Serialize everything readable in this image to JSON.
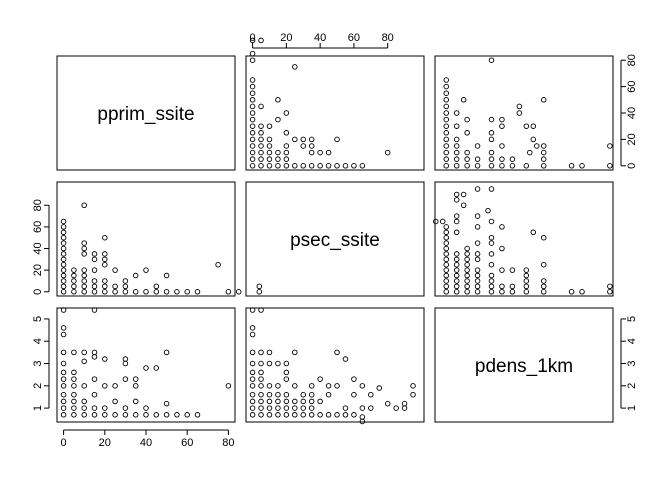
{
  "chart_data": {
    "type": "scatter",
    "variables": [
      "pprim_ssite",
      "psec_ssite",
      "pdens_1km"
    ],
    "tick_labels": {
      "pprim_ssite": [
        "0",
        "20",
        "40",
        "60",
        "80"
      ],
      "psec_ssite": [
        "0",
        "20",
        "40",
        "60",
        "80"
      ],
      "pdens_1km": [
        "1",
        "2",
        "3",
        "4",
        "5"
      ]
    },
    "axis_ranges": {
      "pprim_ssite": [
        -3.2,
        83.2
      ],
      "psec_ssite": [
        -3.9,
        101.5
      ],
      "pdens_1km": [
        0.377,
        5.49
      ]
    },
    "outer_axes": {
      "top": [
        "psec_ssite"
      ],
      "right": [
        "pprim_ssite",
        "pdens_1km"
      ],
      "bottom": [
        "pprim_ssite"
      ],
      "left": [
        "psec_ssite",
        "pdens_1km"
      ]
    },
    "grid": false,
    "legend": "none",
    "points": {
      "pprim_psec": [
        [
          0,
          0
        ],
        [
          0,
          5
        ],
        [
          0,
          10
        ],
        [
          0,
          15
        ],
        [
          0,
          20
        ],
        [
          0,
          25
        ],
        [
          0,
          30
        ],
        [
          0,
          35
        ],
        [
          0,
          40
        ],
        [
          0,
          45
        ],
        [
          0,
          50
        ],
        [
          0,
          55
        ],
        [
          0,
          60
        ],
        [
          0,
          65
        ],
        [
          5,
          0
        ],
        [
          5,
          5
        ],
        [
          5,
          10
        ],
        [
          5,
          15
        ],
        [
          5,
          20
        ],
        [
          10,
          0
        ],
        [
          10,
          5
        ],
        [
          10,
          10
        ],
        [
          10,
          15
        ],
        [
          10,
          20
        ],
        [
          10,
          35
        ],
        [
          10,
          40
        ],
        [
          10,
          45
        ],
        [
          10,
          80
        ],
        [
          15,
          0
        ],
        [
          15,
          5
        ],
        [
          15,
          10
        ],
        [
          15,
          20
        ],
        [
          15,
          30
        ],
        [
          15,
          35
        ],
        [
          20,
          0
        ],
        [
          20,
          5
        ],
        [
          20,
          10
        ],
        [
          20,
          25
        ],
        [
          20,
          30
        ],
        [
          20,
          35
        ],
        [
          20,
          50
        ],
        [
          25,
          0
        ],
        [
          25,
          5
        ],
        [
          25,
          20
        ],
        [
          30,
          0
        ],
        [
          30,
          5
        ],
        [
          30,
          10
        ],
        [
          35,
          0
        ],
        [
          35,
          15
        ],
        [
          40,
          0
        ],
        [
          40,
          20
        ],
        [
          45,
          0
        ],
        [
          45,
          5
        ],
        [
          50,
          0
        ],
        [
          50,
          15
        ],
        [
          55,
          0
        ],
        [
          60,
          0
        ],
        [
          65,
          0
        ],
        [
          75,
          25
        ],
        [
          80,
          0
        ],
        [
          85,
          0
        ],
        [
          95,
          0
        ],
        [
          95,
          5
        ]
      ],
      "pprim_pdens": [
        [
          0,
          0.7
        ],
        [
          0,
          1.0
        ],
        [
          0,
          1.3
        ],
        [
          0,
          1.6
        ],
        [
          0,
          2.0
        ],
        [
          0,
          2.3
        ],
        [
          0,
          2.6
        ],
        [
          0,
          3.0
        ],
        [
          0,
          3.5
        ],
        [
          0,
          4.3
        ],
        [
          0,
          4.6
        ],
        [
          0,
          5.4
        ],
        [
          5,
          0.7
        ],
        [
          5,
          1.0
        ],
        [
          5,
          1.3
        ],
        [
          5,
          1.6
        ],
        [
          5,
          2.0
        ],
        [
          5,
          2.3
        ],
        [
          5,
          2.6
        ],
        [
          5,
          3.5
        ],
        [
          10,
          0.7
        ],
        [
          10,
          1.0
        ],
        [
          10,
          1.3
        ],
        [
          10,
          2.0
        ],
        [
          10,
          3.1
        ],
        [
          10,
          3.5
        ],
        [
          15,
          0.7
        ],
        [
          15,
          1.0
        ],
        [
          15,
          1.6
        ],
        [
          15,
          2.3
        ],
        [
          15,
          3.3
        ],
        [
          15,
          3.5
        ],
        [
          15,
          5.4
        ],
        [
          20,
          0.7
        ],
        [
          20,
          1.0
        ],
        [
          20,
          2.0
        ],
        [
          20,
          3.2
        ],
        [
          25,
          0.7
        ],
        [
          25,
          1.3
        ],
        [
          25,
          2.0
        ],
        [
          30,
          0.7
        ],
        [
          30,
          1.0
        ],
        [
          30,
          2.3
        ],
        [
          30,
          3.0
        ],
        [
          30,
          3.2
        ],
        [
          35,
          0.7
        ],
        [
          35,
          1.3
        ],
        [
          35,
          2.0
        ],
        [
          35,
          2.3
        ],
        [
          40,
          0.7
        ],
        [
          40,
          1.0
        ],
        [
          40,
          2.8
        ],
        [
          45,
          0.7
        ],
        [
          45,
          2.8
        ],
        [
          50,
          0.7
        ],
        [
          50,
          1.2
        ],
        [
          50,
          3.5
        ],
        [
          55,
          0.7
        ],
        [
          60,
          0.7
        ],
        [
          65,
          0.7
        ],
        [
          80,
          2.0
        ]
      ],
      "psec_pdens": [
        [
          0,
          0.7
        ],
        [
          0,
          1.0
        ],
        [
          0,
          1.3
        ],
        [
          0,
          1.6
        ],
        [
          0,
          2.0
        ],
        [
          0,
          2.3
        ],
        [
          0,
          2.6
        ],
        [
          0,
          3.0
        ],
        [
          0,
          3.5
        ],
        [
          0,
          4.3
        ],
        [
          0,
          4.6
        ],
        [
          0,
          5.4
        ],
        [
          5,
          0.7
        ],
        [
          5,
          1.0
        ],
        [
          5,
          1.3
        ],
        [
          5,
          1.6
        ],
        [
          5,
          2.0
        ],
        [
          5,
          2.3
        ],
        [
          5,
          2.6
        ],
        [
          5,
          3.0
        ],
        [
          5,
          3.5
        ],
        [
          5,
          5.4
        ],
        [
          10,
          0.7
        ],
        [
          10,
          1.0
        ],
        [
          10,
          1.3
        ],
        [
          10,
          1.6
        ],
        [
          10,
          2.0
        ],
        [
          10,
          3.0
        ],
        [
          10,
          3.5
        ],
        [
          15,
          0.7
        ],
        [
          15,
          1.0
        ],
        [
          15,
          1.3
        ],
        [
          15,
          1.6
        ],
        [
          15,
          2.0
        ],
        [
          15,
          3.0
        ],
        [
          20,
          0.7
        ],
        [
          20,
          1.0
        ],
        [
          20,
          1.3
        ],
        [
          20,
          1.6
        ],
        [
          20,
          2.3
        ],
        [
          20,
          2.6
        ],
        [
          20,
          3.0
        ],
        [
          25,
          0.7
        ],
        [
          25,
          1.0
        ],
        [
          25,
          1.3
        ],
        [
          25,
          2.0
        ],
        [
          25,
          3.5
        ],
        [
          30,
          0.7
        ],
        [
          30,
          1.0
        ],
        [
          30,
          1.3
        ],
        [
          30,
          1.6
        ],
        [
          35,
          0.7
        ],
        [
          35,
          1.0
        ],
        [
          35,
          1.3
        ],
        [
          35,
          1.6
        ],
        [
          35,
          2.0
        ],
        [
          40,
          0.7
        ],
        [
          40,
          1.3
        ],
        [
          40,
          2.3
        ],
        [
          45,
          0.7
        ],
        [
          45,
          1.6
        ],
        [
          45,
          2.0
        ],
        [
          50,
          0.7
        ],
        [
          50,
          2.0
        ],
        [
          50,
          3.5
        ],
        [
          55,
          0.7
        ],
        [
          55,
          1.0
        ],
        [
          55,
          3.2
        ],
        [
          60,
          0.7
        ],
        [
          60,
          1.6
        ],
        [
          60,
          2.3
        ],
        [
          65,
          0.4
        ],
        [
          65,
          0.6
        ],
        [
          65,
          1.0
        ],
        [
          65,
          2.0
        ],
        [
          70,
          1.0
        ],
        [
          70,
          1.6
        ],
        [
          75,
          1.9
        ],
        [
          80,
          1.2
        ],
        [
          85,
          1.0
        ],
        [
          90,
          1.0
        ],
        [
          90,
          1.2
        ],
        [
          95,
          1.6
        ],
        [
          95,
          2.0
        ]
      ]
    }
  }
}
